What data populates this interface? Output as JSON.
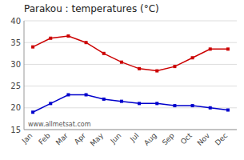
{
  "chart_data": {
    "type": "line",
    "title": "Parakou : temperatures (°C)",
    "categories": [
      "Jan",
      "Feb",
      "Mar",
      "Apr",
      "May",
      "Jun",
      "Jul",
      "Aug",
      "Sep",
      "Oct",
      "Nov",
      "Dec"
    ],
    "series": [
      {
        "color": "#cc0000",
        "marker": "square",
        "values": [
          34,
          36,
          36.5,
          35,
          32.5,
          30.5,
          29,
          28.5,
          29.5,
          31.5,
          33.5,
          33.5
        ]
      },
      {
        "color": "#0000cc",
        "marker": "square",
        "values": [
          19,
          21,
          23,
          23,
          22,
          21.5,
          21,
          21,
          20.5,
          20.5,
          20,
          19.5
        ]
      }
    ],
    "ylim": [
      15,
      40
    ],
    "yticks": [
      15,
      20,
      25,
      30,
      35,
      40
    ],
    "grid": true,
    "annotations": [
      "www.allmetsat.com"
    ]
  }
}
